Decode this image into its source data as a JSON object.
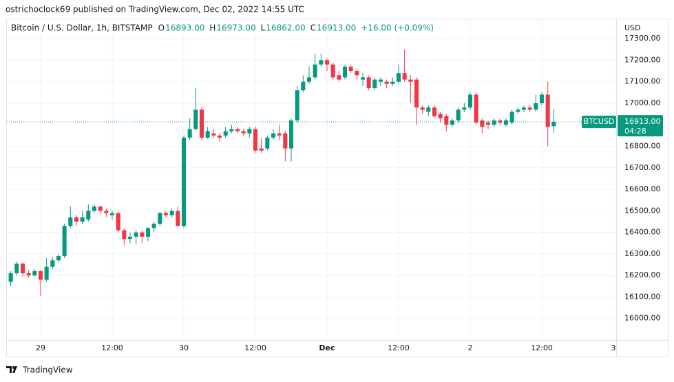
{
  "header": {
    "text": "ostrichoclock69 published on TradingView.com, Dec 02, 2022 14:55 UTC"
  },
  "legend": {
    "symbol": "Bitcoin / U.S. Dollar, 1h, BITSTAMP",
    "o_label": "O",
    "o": "16893.00",
    "h_label": "H",
    "h": "16973.00",
    "l_label": "L",
    "l": "16862.00",
    "c_label": "C",
    "c": "16913.00",
    "change": "+16.00 (+0.09%)"
  },
  "footer": {
    "brand": "TradingView"
  },
  "chart_data": {
    "type": "candlestick",
    "currency": "USD",
    "ticker": "BTCUSD",
    "countdown": "04:28",
    "last_price": {
      "value": 16913,
      "label": "16913.00"
    },
    "up_color": "#089981",
    "down_color": "#f23645",
    "grid": true,
    "x": [
      -5,
      -4,
      -3,
      -2,
      -1,
      0,
      1,
      2,
      3,
      4,
      5,
      6,
      7,
      8,
      9,
      10,
      11,
      12,
      13,
      14,
      15,
      16,
      17,
      18,
      19,
      20,
      21,
      22,
      23,
      24,
      25,
      26,
      27,
      28,
      29,
      30,
      31,
      32,
      33,
      34,
      35,
      36,
      37,
      38,
      39,
      40,
      41,
      42,
      43,
      44,
      45,
      46,
      47,
      48,
      49,
      50,
      51,
      52,
      53,
      54,
      55,
      56,
      57,
      58,
      59,
      60,
      61,
      62,
      63,
      64,
      65,
      66,
      67,
      68,
      69,
      70,
      71,
      72,
      73,
      74,
      75,
      76,
      77,
      78,
      79,
      80,
      81,
      82,
      83,
      84,
      85,
      86
    ],
    "open": [
      16170,
      16210,
      16255,
      16210,
      16200,
      16220,
      16180,
      16240,
      16270,
      16290,
      16430,
      16470,
      16450,
      16460,
      16500,
      16520,
      16500,
      16480,
      16490,
      16410,
      16370,
      16380,
      16400,
      16380,
      16420,
      16440,
      16490,
      16480,
      16500,
      16430,
      16840,
      16880,
      16970,
      16840,
      16860,
      16850,
      16850,
      16870,
      16880,
      16870,
      16860,
      16880,
      16790,
      16790,
      16840,
      16860,
      16860,
      16790,
      16920,
      17060,
      17100,
      17120,
      17180,
      17200,
      17180,
      17130,
      17120,
      17170,
      17150,
      17110,
      17120,
      17070,
      17100,
      17100,
      17090,
      17100,
      17140,
      17110,
      17110,
      16980,
      16960,
      16980,
      16950,
      16940,
      16900,
      16920,
      16970,
      16980,
      17040,
      16920,
      16910,
      16900,
      16920,
      16900,
      16910,
      16960,
      16970,
      16980,
      16970,
      17000,
      17040,
      16893
    ],
    "high": [
      16220,
      16265,
      16260,
      16225,
      16230,
      16225,
      16280,
      16285,
      16300,
      16440,
      16520,
      16480,
      16500,
      16530,
      16530,
      16525,
      16510,
      16500,
      16495,
      16420,
      16400,
      16410,
      16410,
      16425,
      16450,
      16495,
      16500,
      16510,
      16520,
      16850,
      16930,
      17070,
      16980,
      16890,
      16880,
      16860,
      16890,
      16900,
      16890,
      16880,
      16890,
      16890,
      16840,
      16850,
      16880,
      16900,
      16870,
      16930,
      17080,
      17130,
      17170,
      17230,
      17230,
      17210,
      17190,
      17150,
      17180,
      17180,
      17160,
      17140,
      17130,
      17120,
      17120,
      17110,
      17120,
      17180,
      17250,
      17130,
      17120,
      16990,
      16990,
      16990,
      16960,
      16950,
      16930,
      16980,
      17000,
      17050,
      17050,
      16930,
      16920,
      16930,
      16930,
      16930,
      16970,
      16980,
      16990,
      16990,
      17040,
      17050,
      17100,
      16973
    ],
    "low": [
      16150,
      16200,
      16195,
      16190,
      16195,
      16105,
      16170,
      16230,
      16260,
      16280,
      16420,
      16430,
      16440,
      16450,
      16490,
      16490,
      16470,
      16460,
      16400,
      16340,
      16350,
      16345,
      16350,
      16360,
      16400,
      16430,
      16470,
      16470,
      16425,
      16420,
      16830,
      16870,
      16830,
      16835,
      16840,
      16820,
      16840,
      16860,
      16860,
      16850,
      16840,
      16770,
      16770,
      16780,
      16830,
      16830,
      16730,
      16730,
      16910,
      17050,
      17090,
      17110,
      17170,
      17150,
      17110,
      17100,
      17110,
      17140,
      17110,
      17080,
      17060,
      17060,
      17080,
      17070,
      17080,
      17090,
      17100,
      17000,
      16900,
      16950,
      16940,
      16930,
      16910,
      16870,
      16890,
      16910,
      16960,
      16970,
      16900,
      16860,
      16880,
      16890,
      16900,
      16890,
      16900,
      16950,
      16960,
      16960,
      16960,
      16990,
      16800,
      16862
    ],
    "close": [
      16210,
      16255,
      16210,
      16200,
      16220,
      16180,
      16240,
      16270,
      16290,
      16430,
      16470,
      16450,
      16470,
      16500,
      16520,
      16500,
      16490,
      16490,
      16410,
      16370,
      16380,
      16400,
      16380,
      16420,
      16440,
      16490,
      16480,
      16500,
      16430,
      16840,
      16880,
      16970,
      16840,
      16870,
      16850,
      16840,
      16870,
      16880,
      16870,
      16860,
      16880,
      16780,
      16780,
      16840,
      16860,
      16850,
      16790,
      16920,
      17060,
      17100,
      17120,
      17180,
      17200,
      17180,
      17120,
      17110,
      17170,
      17150,
      17130,
      17120,
      17070,
      17110,
      17110,
      17090,
      17100,
      17140,
      17110,
      17100,
      16980,
      16970,
      16980,
      16940,
      16930,
      16900,
      16920,
      16970,
      16980,
      17040,
      16910,
      16890,
      16900,
      16920,
      16910,
      16920,
      16960,
      16970,
      16980,
      16970,
      17000,
      17040,
      16890,
      16913
    ],
    "xlim": [
      -5.65,
      96.46
    ],
    "xticks": [
      {
        "value": 0,
        "label": "29"
      },
      {
        "value": 12,
        "label": "12:00"
      },
      {
        "value": 24,
        "label": "30"
      },
      {
        "value": 36,
        "label": "12:00"
      },
      {
        "value": 48,
        "label": "Dec"
      },
      {
        "value": 60,
        "label": "12:00"
      },
      {
        "value": 72,
        "label": "2"
      },
      {
        "value": 84,
        "label": "12:00"
      },
      {
        "value": 96,
        "label": "3"
      }
    ],
    "ylim": [
      15900,
      17390
    ],
    "yticks": [
      {
        "value": 16000,
        "label": "16000.00"
      },
      {
        "value": 16100,
        "label": "16100.00"
      },
      {
        "value": 16200,
        "label": "16200.00"
      },
      {
        "value": 16300,
        "label": "16300.00"
      },
      {
        "value": 16400,
        "label": "16400.00"
      },
      {
        "value": 16500,
        "label": "16500.00"
      },
      {
        "value": 16600,
        "label": "16600.00"
      },
      {
        "value": 16700,
        "label": "16700.00"
      },
      {
        "value": 16800,
        "label": "16800.00"
      },
      {
        "value": 16900,
        "label": "16900.00"
      },
      {
        "value": 17000,
        "label": "17000.00"
      },
      {
        "value": 17100,
        "label": "17100.00"
      },
      {
        "value": 17200,
        "label": "17200.00"
      },
      {
        "value": 17300,
        "label": "17300.00"
      }
    ]
  }
}
